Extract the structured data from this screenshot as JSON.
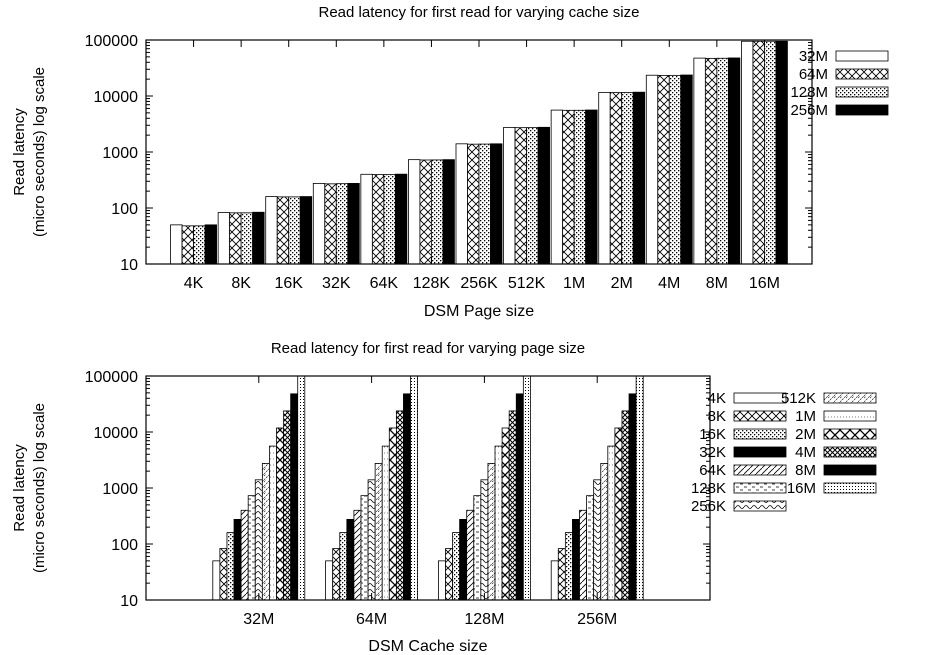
{
  "chart_data": [
    {
      "type": "bar",
      "title": "Read latency for first read for varying cache size",
      "xlabel": "DSM Page size",
      "ylabel": [
        "Read latency",
        "(micro seconds) log scale"
      ],
      "y_scale": "log",
      "ylim": [
        10,
        100000
      ],
      "y_ticks": [
        "10",
        "100",
        "1000",
        "10000",
        "100000"
      ],
      "legend_position": "right",
      "categories": [
        "4K",
        "8K",
        "16K",
        "32K",
        "64K",
        "128K",
        "256K",
        "512K",
        "1M",
        "2M",
        "4M",
        "8M",
        "16M"
      ],
      "series": [
        {
          "name": "32M",
          "pattern": "empty",
          "values": [
            50,
            83,
            160,
            275,
            400,
            730,
            1400,
            2750,
            5600,
            11600,
            23500,
            47500,
            95000
          ]
        },
        {
          "name": "64M",
          "pattern": "cross",
          "values": [
            48,
            82,
            158,
            270,
            395,
            720,
            1380,
            2720,
            5550,
            11500,
            23300,
            47000,
            95000
          ]
        },
        {
          "name": "128M",
          "pattern": "dots",
          "values": [
            48,
            82,
            158,
            272,
            395,
            722,
            1385,
            2725,
            5560,
            11520,
            23350,
            47200,
            95000
          ]
        },
        {
          "name": "256M",
          "pattern": "solid",
          "values": [
            50,
            84,
            160,
            275,
            402,
            730,
            1400,
            2760,
            5620,
            11700,
            23700,
            47800,
            95000
          ]
        }
      ]
    },
    {
      "type": "bar",
      "title": "Read latency for first read for varying page size",
      "xlabel": "DSM Cache size",
      "ylabel": [
        "Read latency",
        "(micro seconds) log scale"
      ],
      "y_scale": "log",
      "ylim": [
        10,
        100000
      ],
      "y_ticks": [
        "10",
        "100",
        "1000",
        "10000",
        "100000"
      ],
      "legend_position": "right",
      "categories": [
        "32M",
        "64M",
        "128M",
        "256M"
      ],
      "series": [
        {
          "name": "4K",
          "pattern": "empty",
          "values": [
            50,
            50,
            50,
            50
          ]
        },
        {
          "name": "8K",
          "pattern": "cross",
          "values": [
            83,
            83,
            83,
            83
          ]
        },
        {
          "name": "16K",
          "pattern": "dots",
          "values": [
            160,
            160,
            160,
            160
          ]
        },
        {
          "name": "32K",
          "pattern": "solid",
          "values": [
            275,
            275,
            275,
            275
          ]
        },
        {
          "name": "64K",
          "pattern": "diag",
          "values": [
            400,
            400,
            400,
            400
          ]
        },
        {
          "name": "128K",
          "pattern": "dashes",
          "values": [
            730,
            730,
            730,
            730
          ]
        },
        {
          "name": "256K",
          "pattern": "wave",
          "values": [
            1400,
            1400,
            1400,
            1400
          ]
        },
        {
          "name": "512K",
          "pattern": "wave2",
          "values": [
            2750,
            2750,
            2750,
            2750
          ]
        },
        {
          "name": "1M",
          "pattern": "sparse",
          "values": [
            5600,
            5600,
            5600,
            5600
          ]
        },
        {
          "name": "2M",
          "pattern": "xbig",
          "values": [
            11800,
            11800,
            11800,
            11800
          ]
        },
        {
          "name": "4M",
          "pattern": "dense",
          "values": [
            23800,
            23800,
            23800,
            23800
          ]
        },
        {
          "name": "8M",
          "pattern": "solid",
          "values": [
            48000,
            48000,
            48000,
            48000
          ]
        },
        {
          "name": "16M",
          "pattern": "fine",
          "values": [
            100000,
            100000,
            100000,
            100000
          ]
        }
      ]
    }
  ]
}
